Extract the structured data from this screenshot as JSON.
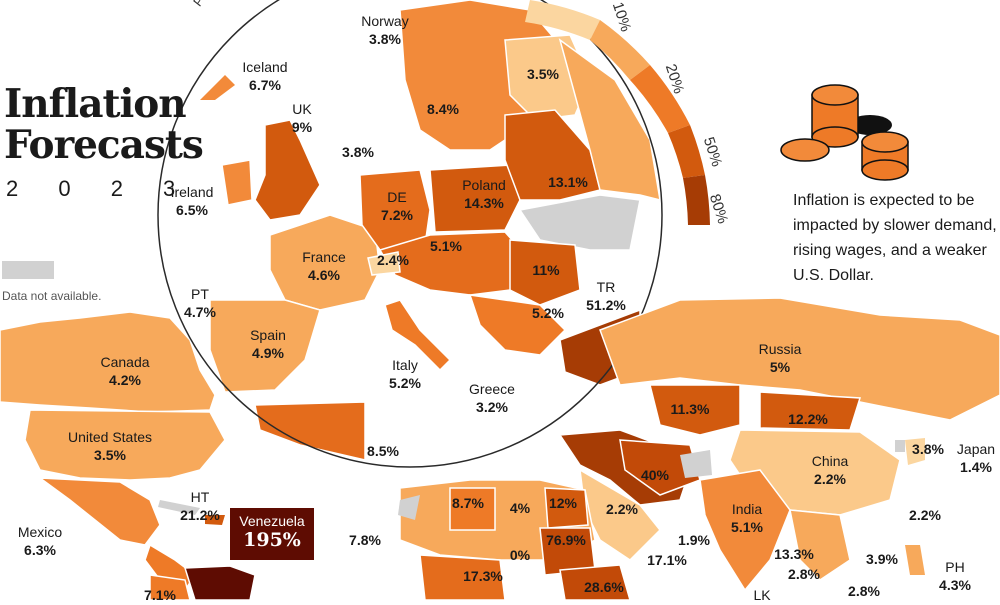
{
  "title": {
    "line1": "Inflation",
    "line2": "Forecasts",
    "year": "2 0 2 3"
  },
  "legend": {
    "title": "Projected A",
    "na_label": "Data not available.",
    "ticks": [
      "10%",
      "20%",
      "50%",
      "80%"
    ],
    "colors": [
      "#fbd6a0",
      "#f7a95b",
      "#ee7a27",
      "#d25a0e",
      "#a63c05"
    ]
  },
  "note": "Inflation is expected to be impacted by slower demand, rising wages, and a weaker U.S. Dollar.",
  "callout": {
    "name": "Venezuela",
    "value": "195%"
  },
  "countries": [
    {
      "id": "norway",
      "name": "Norway",
      "value": "3.8%"
    },
    {
      "id": "iceland",
      "name": "Iceland",
      "value": "6.7%"
    },
    {
      "id": "uk",
      "name": "UK",
      "value": "9%"
    },
    {
      "id": "ireland",
      "name": "Ireland",
      "value": "6.5%"
    },
    {
      "id": "de",
      "name": "DE",
      "value": "7.2%"
    },
    {
      "id": "poland",
      "name": "Poland",
      "value": "14.3%"
    },
    {
      "id": "france",
      "name": "France",
      "value": "4.6%"
    },
    {
      "id": "pt",
      "name": "PT",
      "value": "4.7%"
    },
    {
      "id": "spain",
      "name": "Spain",
      "value": "4.9%"
    },
    {
      "id": "italy",
      "name": "Italy",
      "value": "5.2%"
    },
    {
      "id": "greece",
      "name": "Greece",
      "value": "3.2%"
    },
    {
      "id": "tr",
      "name": "TR",
      "value": "51.2%"
    },
    {
      "id": "russia",
      "name": "Russia",
      "value": "5%"
    },
    {
      "id": "canada",
      "name": "Canada",
      "value": "4.2%"
    },
    {
      "id": "us",
      "name": "United States",
      "value": "3.5%"
    },
    {
      "id": "ht",
      "name": "HT",
      "value": "21.2%"
    },
    {
      "id": "mexico",
      "name": "Mexico",
      "value": "6.3%"
    },
    {
      "id": "china",
      "name": "China",
      "value": "2.2%"
    },
    {
      "id": "japan",
      "name": "Japan",
      "value": "1.4%"
    },
    {
      "id": "india",
      "name": "India",
      "value": "5.1%"
    },
    {
      "id": "ph",
      "name": "PH",
      "value": "4.3%"
    },
    {
      "id": "lk",
      "name": "LK",
      "value": ""
    }
  ],
  "values_only": [
    "3.5%",
    "8.4%",
    "3.8%",
    "13.1%",
    "5.1%",
    "2.4%",
    "11%",
    "5.2%",
    "8.5%",
    "11.3%",
    "12.2%",
    "40%",
    "3.8%",
    "2.2%",
    "2.2%",
    "1.9%",
    "17.1%",
    "13.3%",
    "2.8%",
    "3.9%",
    "2.8%",
    "8.7%",
    "4%",
    "12%",
    "76.9%",
    "0%",
    "17.3%",
    "28.6%",
    "7.8%",
    "7.1%"
  ]
}
